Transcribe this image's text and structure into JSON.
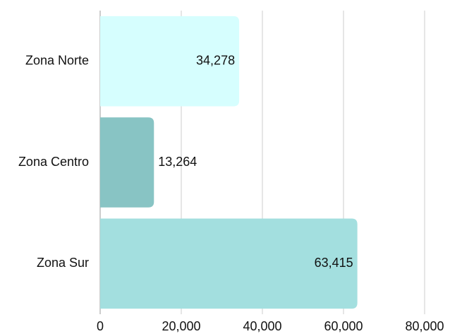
{
  "chart_data": {
    "type": "barh",
    "categories": [
      "Zona Norte",
      "Zona Centro",
      "Zona Sur"
    ],
    "values": [
      34278,
      13264,
      63415
    ],
    "value_labels": [
      "34,278",
      "13,264",
      "63,415"
    ],
    "colors": [
      "#d6fefe",
      "#88c4c4",
      "#a3dfdf"
    ],
    "xlim": [
      0,
      80000
    ],
    "xticks": [
      0,
      {
        "value": 20000,
        "label": "20,000"
      },
      {
        "value": 40000,
        "label": "40,000"
      },
      {
        "value": 60000,
        "label": "60,000"
      },
      {
        "value": 80000,
        "label": "80,000"
      }
    ],
    "grid": true
  }
}
